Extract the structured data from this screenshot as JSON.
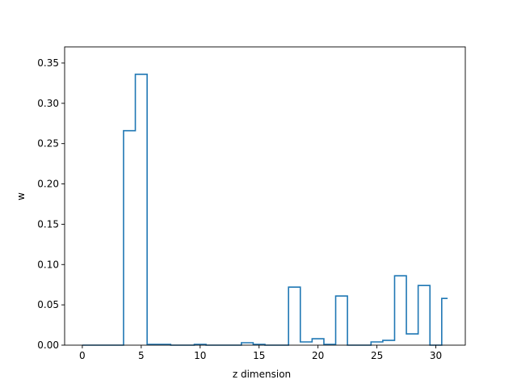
{
  "chart_data": {
    "type": "line",
    "style": "step-mid",
    "title": "",
    "xlabel": "z dimension",
    "ylabel": "w",
    "xlim": [
      -1.5,
      32.5
    ],
    "ylim": [
      0,
      0.37
    ],
    "xticks": [
      0,
      5,
      10,
      15,
      20,
      25,
      30
    ],
    "yticks": [
      0.0,
      0.05,
      0.1,
      0.15,
      0.2,
      0.25,
      0.3,
      0.35
    ],
    "ytick_labels": [
      "0.00",
      "0.05",
      "0.10",
      "0.15",
      "0.20",
      "0.25",
      "0.30",
      "0.35"
    ],
    "grid": false,
    "line_color": "#1f77b4",
    "series": [
      {
        "x": [
          0,
          1,
          2,
          3,
          4,
          5,
          6,
          7,
          8,
          9,
          10,
          11,
          12,
          13,
          14,
          15,
          16,
          17,
          18,
          19,
          20,
          21,
          22,
          23,
          24,
          25,
          26,
          27,
          28,
          29,
          30,
          31
        ],
        "values": [
          0.0,
          0.0,
          0.0,
          0.0,
          0.266,
          0.336,
          0.001,
          0.001,
          0.0,
          0.0,
          0.001,
          0.0,
          0.0,
          0.0,
          0.003,
          0.001,
          0.0,
          0.0,
          0.072,
          0.004,
          0.008,
          0.001,
          0.061,
          0.0,
          0.0,
          0.004,
          0.006,
          0.086,
          0.014,
          0.074,
          0.0,
          0.058
        ]
      }
    ]
  }
}
